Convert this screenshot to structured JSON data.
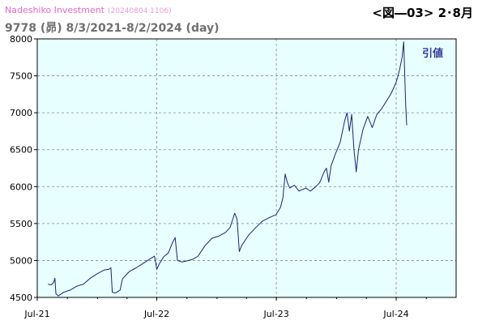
{
  "header": {
    "brand": "Nadeshiko Investment",
    "stamp": "(20240804 1106)",
    "figure_tag": "<図―03> 2･8月",
    "subtitle": "9778 (昴) 8/3/2021-8/2/2024 (day)"
  },
  "colors": {
    "plot_background": "#e8ffff",
    "line": "#1c2472",
    "grid": "#888888",
    "legend_text": "#2e3a9a"
  },
  "chart_data": {
    "type": "line",
    "title": "",
    "xlabel": "",
    "ylabel": "",
    "x_range": [
      "2021-07-01",
      "2024-12-31"
    ],
    "ylim": [
      4500,
      8000
    ],
    "yticks": [
      4500,
      5000,
      5500,
      6000,
      6500,
      7000,
      7500,
      8000
    ],
    "xticks": [
      {
        "date": "2021-07-01",
        "label": "Jul-21"
      },
      {
        "date": "2022-07-01",
        "label": "Jul-22"
      },
      {
        "date": "2023-07-01",
        "label": "Jul-23"
      },
      {
        "date": "2024-07-01",
        "label": "Jul-24"
      }
    ],
    "grid": true,
    "legend_placement": "top-right",
    "series": [
      {
        "name": "引値",
        "points": [
          [
            "2021-08-03",
            4680
          ],
          [
            "2021-08-12",
            4670
          ],
          [
            "2021-08-20",
            4700
          ],
          [
            "2021-08-24",
            4760
          ],
          [
            "2021-08-27",
            4550
          ],
          [
            "2021-09-03",
            4520
          ],
          [
            "2021-09-20",
            4570
          ],
          [
            "2021-10-10",
            4600
          ],
          [
            "2021-10-29",
            4650
          ],
          [
            "2021-11-19",
            4680
          ],
          [
            "2021-12-10",
            4760
          ],
          [
            "2021-12-31",
            4820
          ],
          [
            "2022-01-21",
            4870
          ],
          [
            "2022-02-04",
            4880
          ],
          [
            "2022-02-11",
            4900
          ],
          [
            "2022-02-15",
            4570
          ],
          [
            "2022-02-25",
            4560
          ],
          [
            "2022-03-11",
            4600
          ],
          [
            "2022-03-18",
            4750
          ],
          [
            "2022-04-08",
            4850
          ],
          [
            "2022-04-29",
            4900
          ],
          [
            "2022-05-20",
            4960
          ],
          [
            "2022-06-10",
            5020
          ],
          [
            "2022-06-24",
            5060
          ],
          [
            "2022-07-01",
            4880
          ],
          [
            "2022-07-08",
            4950
          ],
          [
            "2022-07-22",
            5050
          ],
          [
            "2022-08-05",
            5100
          ],
          [
            "2022-08-19",
            5250
          ],
          [
            "2022-08-26",
            5310
          ],
          [
            "2022-09-02",
            5000
          ],
          [
            "2022-09-16",
            4980
          ],
          [
            "2022-10-07",
            5000
          ],
          [
            "2022-10-21",
            5020
          ],
          [
            "2022-11-04",
            5060
          ],
          [
            "2022-11-25",
            5200
          ],
          [
            "2022-12-16",
            5300
          ],
          [
            "2023-01-06",
            5330
          ],
          [
            "2023-01-27",
            5380
          ],
          [
            "2023-02-10",
            5450
          ],
          [
            "2023-02-24",
            5640
          ],
          [
            "2023-03-03",
            5560
          ],
          [
            "2023-03-10",
            5120
          ],
          [
            "2023-03-17",
            5200
          ],
          [
            "2023-04-07",
            5340
          ],
          [
            "2023-04-28",
            5440
          ],
          [
            "2023-05-19",
            5530
          ],
          [
            "2023-06-09",
            5580
          ],
          [
            "2023-06-30",
            5620
          ],
          [
            "2023-07-14",
            5720
          ],
          [
            "2023-07-21",
            5850
          ],
          [
            "2023-07-28",
            6170
          ],
          [
            "2023-08-04",
            6050
          ],
          [
            "2023-08-11",
            5980
          ],
          [
            "2023-08-25",
            6020
          ],
          [
            "2023-09-08",
            5940
          ],
          [
            "2023-09-29",
            5980
          ],
          [
            "2023-10-13",
            5940
          ],
          [
            "2023-10-27",
            5990
          ],
          [
            "2023-11-10",
            6050
          ],
          [
            "2023-11-24",
            6200
          ],
          [
            "2023-12-01",
            6250
          ],
          [
            "2023-12-08",
            6060
          ],
          [
            "2023-12-15",
            6280
          ],
          [
            "2023-12-29",
            6450
          ],
          [
            "2024-01-12",
            6600
          ],
          [
            "2024-01-26",
            6900
          ],
          [
            "2024-02-02",
            7000
          ],
          [
            "2024-02-09",
            6750
          ],
          [
            "2024-02-16",
            6980
          ],
          [
            "2024-02-23",
            6500
          ],
          [
            "2024-03-01",
            6200
          ],
          [
            "2024-03-08",
            6500
          ],
          [
            "2024-03-22",
            6780
          ],
          [
            "2024-04-05",
            6950
          ],
          [
            "2024-04-19",
            6800
          ],
          [
            "2024-05-03",
            6980
          ],
          [
            "2024-05-17",
            7050
          ],
          [
            "2024-05-31",
            7150
          ],
          [
            "2024-06-14",
            7250
          ],
          [
            "2024-06-28",
            7380
          ],
          [
            "2024-07-05",
            7470
          ],
          [
            "2024-07-12",
            7600
          ],
          [
            "2024-07-19",
            7750
          ],
          [
            "2024-07-24",
            7960
          ],
          [
            "2024-07-26",
            7680
          ],
          [
            "2024-07-30",
            7120
          ],
          [
            "2024-08-02",
            6830
          ]
        ]
      }
    ]
  }
}
